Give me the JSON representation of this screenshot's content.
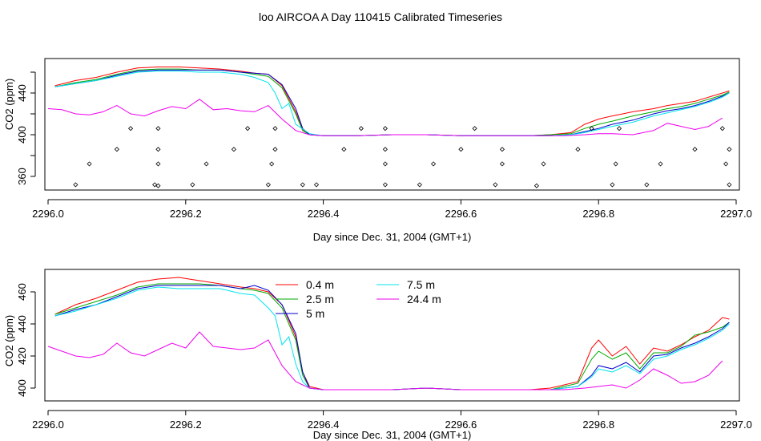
{
  "title": "loo AIRCOA A  Day 110415  Calibrated Timeseries",
  "chart_data": [
    {
      "type": "line",
      "xlabel": "Day since Dec. 31, 2004 (GMT+1)",
      "ylabel": "CO2 (ppm)",
      "xlim": [
        2296.0,
        2297.0
      ],
      "ylim": [
        350,
        470
      ],
      "xticks": [
        2296.0,
        2296.2,
        2296.4,
        2296.6,
        2296.8,
        2297.0
      ],
      "xtick_labels": [
        "2296.0",
        "2296.2",
        "2296.4",
        "2296.6",
        "2296.8",
        "2297.0"
      ],
      "yticks": [
        360,
        380,
        400,
        420,
        440,
        460
      ],
      "ytick_labels": [
        "360",
        "",
        "400",
        "",
        "440",
        ""
      ],
      "grid": false,
      "series": [
        {
          "color": "#ff0000",
          "x": [
            2296.01,
            2296.04,
            2296.07,
            2296.1,
            2296.13,
            2296.16,
            2296.19,
            2296.22,
            2296.25,
            2296.28,
            2296.3,
            2296.32,
            2296.34,
            2296.36,
            2296.37,
            2296.38,
            2296.4,
            2296.45,
            2296.5,
            2296.55,
            2296.6,
            2296.65,
            2296.7,
            2296.73,
            2296.76,
            2296.78,
            2296.8,
            2296.82,
            2296.85,
            2296.88,
            2296.9,
            2296.92,
            2296.94,
            2296.96,
            2296.98,
            2296.99
          ],
          "y": [
            447,
            452,
            455,
            460,
            464,
            465,
            465,
            464,
            463,
            461,
            459,
            458,
            447,
            422,
            405,
            400,
            399,
            399,
            400,
            400,
            399,
            399,
            399,
            400,
            402,
            410,
            415,
            418,
            422,
            425,
            428,
            430,
            432,
            436,
            440,
            442
          ]
        },
        {
          "color": "#00aa00",
          "x": [
            2296.01,
            2296.04,
            2296.07,
            2296.1,
            2296.13,
            2296.16,
            2296.19,
            2296.22,
            2296.25,
            2296.28,
            2296.3,
            2296.32,
            2296.34,
            2296.36,
            2296.37,
            2296.38,
            2296.4,
            2296.45,
            2296.5,
            2296.55,
            2296.6,
            2296.65,
            2296.7,
            2296.73,
            2296.76,
            2296.78,
            2296.8,
            2296.82,
            2296.85,
            2296.88,
            2296.9,
            2296.92,
            2296.94,
            2296.96,
            2296.98,
            2296.99
          ],
          "y": [
            446,
            450,
            453,
            458,
            462,
            463,
            463,
            462,
            462,
            460,
            458,
            456,
            445,
            420,
            404,
            400,
            399,
            399,
            400,
            400,
            399,
            399,
            399,
            400,
            401,
            406,
            410,
            413,
            418,
            422,
            425,
            427,
            430,
            434,
            438,
            441
          ]
        },
        {
          "color": "#0000cc",
          "x": [
            2296.01,
            2296.04,
            2296.07,
            2296.1,
            2296.13,
            2296.16,
            2296.19,
            2296.22,
            2296.25,
            2296.28,
            2296.3,
            2296.32,
            2296.34,
            2296.36,
            2296.37,
            2296.38,
            2296.4,
            2296.45,
            2296.5,
            2296.55,
            2296.6,
            2296.65,
            2296.7,
            2296.73,
            2296.76,
            2296.78,
            2296.8,
            2296.82,
            2296.85,
            2296.88,
            2296.9,
            2296.92,
            2296.94,
            2296.96,
            2296.98,
            2296.99
          ],
          "y": [
            446,
            449,
            452,
            457,
            461,
            462,
            462,
            462,
            462,
            460,
            459,
            458,
            448,
            425,
            406,
            400,
            399,
            399,
            400,
            400,
            399,
            399,
            399,
            399,
            400,
            403,
            406,
            410,
            414,
            420,
            423,
            425,
            428,
            432,
            437,
            440
          ]
        },
        {
          "color": "#00e5ee",
          "x": [
            2296.01,
            2296.04,
            2296.07,
            2296.1,
            2296.13,
            2296.16,
            2296.19,
            2296.22,
            2296.25,
            2296.28,
            2296.3,
            2296.32,
            2296.33,
            2296.34,
            2296.35,
            2296.36,
            2296.38,
            2296.4,
            2296.45,
            2296.5,
            2296.55,
            2296.6,
            2296.65,
            2296.7,
            2296.73,
            2296.76,
            2296.78,
            2296.8,
            2296.82,
            2296.85,
            2296.88,
            2296.9,
            2296.92,
            2296.94,
            2296.96,
            2296.98,
            2296.99
          ],
          "y": [
            446,
            449,
            452,
            456,
            460,
            461,
            461,
            460,
            460,
            458,
            455,
            450,
            440,
            425,
            430,
            410,
            401,
            399,
            399,
            400,
            400,
            399,
            399,
            399,
            399,
            400,
            402,
            405,
            408,
            412,
            418,
            421,
            424,
            427,
            431,
            436,
            440
          ]
        },
        {
          "color": "#ee00ee",
          "x": [
            2296.0,
            2296.02,
            2296.04,
            2296.06,
            2296.08,
            2296.1,
            2296.12,
            2296.14,
            2296.16,
            2296.18,
            2296.2,
            2296.22,
            2296.24,
            2296.26,
            2296.28,
            2296.3,
            2296.32,
            2296.34,
            2296.36,
            2296.38,
            2296.4,
            2296.45,
            2296.5,
            2296.55,
            2296.6,
            2296.65,
            2296.7,
            2296.75,
            2296.78,
            2296.8,
            2296.82,
            2296.85,
            2296.88,
            2296.9,
            2296.92,
            2296.94,
            2296.96,
            2296.98
          ],
          "y": [
            425,
            424,
            420,
            419,
            422,
            428,
            420,
            418,
            423,
            427,
            425,
            434,
            424,
            425,
            423,
            422,
            428,
            415,
            404,
            400,
            399,
            399,
            400,
            400,
            399,
            399,
            399,
            399,
            400,
            401,
            401,
            400,
            404,
            411,
            408,
            405,
            408,
            416
          ]
        }
      ],
      "points": {
        "x": [
          2296.04,
          2296.06,
          2296.1,
          2296.12,
          2296.155,
          2296.16,
          2296.16,
          2296.16,
          2296.16,
          2296.21,
          2296.23,
          2296.27,
          2296.29,
          2296.32,
          2296.325,
          2296.33,
          2296.33,
          2296.37,
          2296.39,
          2296.43,
          2296.455,
          2296.49,
          2296.49,
          2296.49,
          2296.49,
          2296.54,
          2296.56,
          2296.6,
          2296.62,
          2296.65,
          2296.66,
          2296.66,
          2296.71,
          2296.72,
          2296.77,
          2296.79,
          2296.82,
          2296.825,
          2296.83,
          2296.87,
          2296.89,
          2296.94,
          2296.98,
          2296.985,
          2296.99,
          2296.99
        ],
        "y": [
          352,
          372,
          386,
          406,
          352,
          372,
          386,
          406,
          351,
          352,
          372,
          386,
          406,
          352,
          372,
          386,
          406,
          352,
          352,
          386,
          406,
          352,
          372,
          386,
          406,
          352,
          372,
          386,
          406,
          352,
          372,
          386,
          351,
          372,
          386,
          406,
          352,
          372,
          406,
          352,
          372,
          386,
          406,
          372,
          352,
          386
        ]
      }
    },
    {
      "type": "line",
      "xlabel": "Day since Dec. 31, 2004 (GMT+1)",
      "ylabel": "CO2 (ppm)",
      "xlim": [
        2296.0,
        2297.0
      ],
      "ylim": [
        394,
        472
      ],
      "xticks": [
        2296.0,
        2296.2,
        2296.4,
        2296.6,
        2296.8,
        2297.0
      ],
      "xtick_labels": [
        "2296.0",
        "2296.2",
        "2296.4",
        "2296.6",
        "2296.8",
        "2297.0"
      ],
      "yticks": [
        400,
        420,
        440,
        460
      ],
      "ytick_labels": [
        "400",
        "420",
        "440",
        "460"
      ],
      "grid": false,
      "legend": {
        "placement": "top-center",
        "entries": [
          {
            "label": "0.4 m",
            "color": "#ff0000"
          },
          {
            "label": "2.5 m",
            "color": "#00aa00"
          },
          {
            "label": "5 m",
            "color": "#0000cc"
          },
          {
            "label": "7.5 m",
            "color": "#00e5ee"
          },
          {
            "label": "24.4 m",
            "color": "#ee00ee"
          }
        ]
      },
      "series": [
        {
          "color": "#ff0000",
          "x": [
            2296.01,
            2296.04,
            2296.07,
            2296.1,
            2296.13,
            2296.16,
            2296.19,
            2296.22,
            2296.25,
            2296.28,
            2296.3,
            2296.32,
            2296.34,
            2296.36,
            2296.37,
            2296.38,
            2296.4,
            2296.45,
            2296.5,
            2296.55,
            2296.6,
            2296.65,
            2296.7,
            2296.73,
            2296.75,
            2296.77,
            2296.79,
            2296.8,
            2296.82,
            2296.84,
            2296.86,
            2296.88,
            2296.9,
            2296.92,
            2296.94,
            2296.96,
            2296.98,
            2296.99
          ],
          "y": [
            446,
            452,
            456,
            461,
            466,
            468,
            469,
            467,
            465,
            463,
            462,
            460,
            452,
            432,
            410,
            401,
            399,
            399,
            399,
            400,
            399,
            399,
            399,
            400,
            402,
            404,
            425,
            430,
            420,
            426,
            415,
            425,
            423,
            427,
            432,
            436,
            444,
            443
          ]
        },
        {
          "color": "#00aa00",
          "x": [
            2296.01,
            2296.04,
            2296.07,
            2296.1,
            2296.13,
            2296.16,
            2296.19,
            2296.22,
            2296.25,
            2296.28,
            2296.3,
            2296.32,
            2296.34,
            2296.36,
            2296.37,
            2296.38,
            2296.4,
            2296.45,
            2296.5,
            2296.55,
            2296.6,
            2296.65,
            2296.7,
            2296.73,
            2296.75,
            2296.77,
            2296.79,
            2296.8,
            2296.82,
            2296.84,
            2296.86,
            2296.88,
            2296.9,
            2296.92,
            2296.94,
            2296.96,
            2296.98,
            2296.99
          ],
          "y": [
            446,
            450,
            454,
            458,
            463,
            465,
            465,
            465,
            464,
            462,
            461,
            459,
            450,
            430,
            408,
            400,
            399,
            399,
            399,
            400,
            399,
            399,
            399,
            399,
            401,
            403,
            418,
            423,
            418,
            422,
            412,
            422,
            422,
            426,
            433,
            435,
            438,
            441
          ]
        },
        {
          "color": "#0000cc",
          "x": [
            2296.01,
            2296.04,
            2296.07,
            2296.1,
            2296.13,
            2296.16,
            2296.19,
            2296.22,
            2296.25,
            2296.28,
            2296.3,
            2296.32,
            2296.34,
            2296.36,
            2296.37,
            2296.38,
            2296.4,
            2296.45,
            2296.5,
            2296.55,
            2296.6,
            2296.65,
            2296.7,
            2296.73,
            2296.75,
            2296.77,
            2296.79,
            2296.8,
            2296.82,
            2296.84,
            2296.86,
            2296.88,
            2296.9,
            2296.92,
            2296.94,
            2296.96,
            2296.98,
            2296.99
          ],
          "y": [
            445,
            449,
            452,
            457,
            462,
            464,
            464,
            464,
            464,
            462,
            464,
            461,
            452,
            434,
            410,
            400,
            399,
            399,
            399,
            400,
            399,
            399,
            399,
            399,
            400,
            401,
            408,
            414,
            412,
            416,
            410,
            420,
            421,
            425,
            428,
            432,
            437,
            441
          ]
        },
        {
          "color": "#00e5ee",
          "x": [
            2296.01,
            2296.04,
            2296.07,
            2296.1,
            2296.13,
            2296.16,
            2296.19,
            2296.22,
            2296.25,
            2296.28,
            2296.3,
            2296.32,
            2296.33,
            2296.34,
            2296.35,
            2296.36,
            2296.37,
            2296.38,
            2296.4,
            2296.45,
            2296.5,
            2296.55,
            2296.6,
            2296.65,
            2296.7,
            2296.73,
            2296.75,
            2296.77,
            2296.79,
            2296.8,
            2296.82,
            2296.84,
            2296.86,
            2296.88,
            2296.9,
            2296.92,
            2296.94,
            2296.96,
            2296.98,
            2296.99
          ],
          "y": [
            445,
            448,
            452,
            456,
            461,
            463,
            462,
            462,
            462,
            459,
            458,
            450,
            445,
            427,
            432,
            415,
            404,
            400,
            399,
            399,
            399,
            400,
            399,
            399,
            399,
            399,
            400,
            401,
            407,
            412,
            410,
            414,
            409,
            418,
            420,
            424,
            427,
            431,
            436,
            440
          ]
        },
        {
          "color": "#ee00ee",
          "x": [
            2296.0,
            2296.02,
            2296.04,
            2296.06,
            2296.08,
            2296.1,
            2296.12,
            2296.14,
            2296.16,
            2296.18,
            2296.2,
            2296.22,
            2296.24,
            2296.26,
            2296.28,
            2296.3,
            2296.32,
            2296.34,
            2296.36,
            2296.38,
            2296.4,
            2296.45,
            2296.5,
            2296.55,
            2296.6,
            2296.65,
            2296.7,
            2296.75,
            2296.78,
            2296.8,
            2296.82,
            2296.84,
            2296.86,
            2296.88,
            2296.9,
            2296.92,
            2296.94,
            2296.96,
            2296.98
          ],
          "y": [
            426,
            423,
            420,
            419,
            421,
            428,
            422,
            420,
            424,
            428,
            425,
            435,
            426,
            425,
            424,
            425,
            430,
            414,
            404,
            400,
            399,
            399,
            399,
            400,
            399,
            399,
            399,
            399,
            400,
            401,
            402,
            400,
            405,
            412,
            408,
            403,
            404,
            408,
            417
          ]
        }
      ]
    }
  ]
}
